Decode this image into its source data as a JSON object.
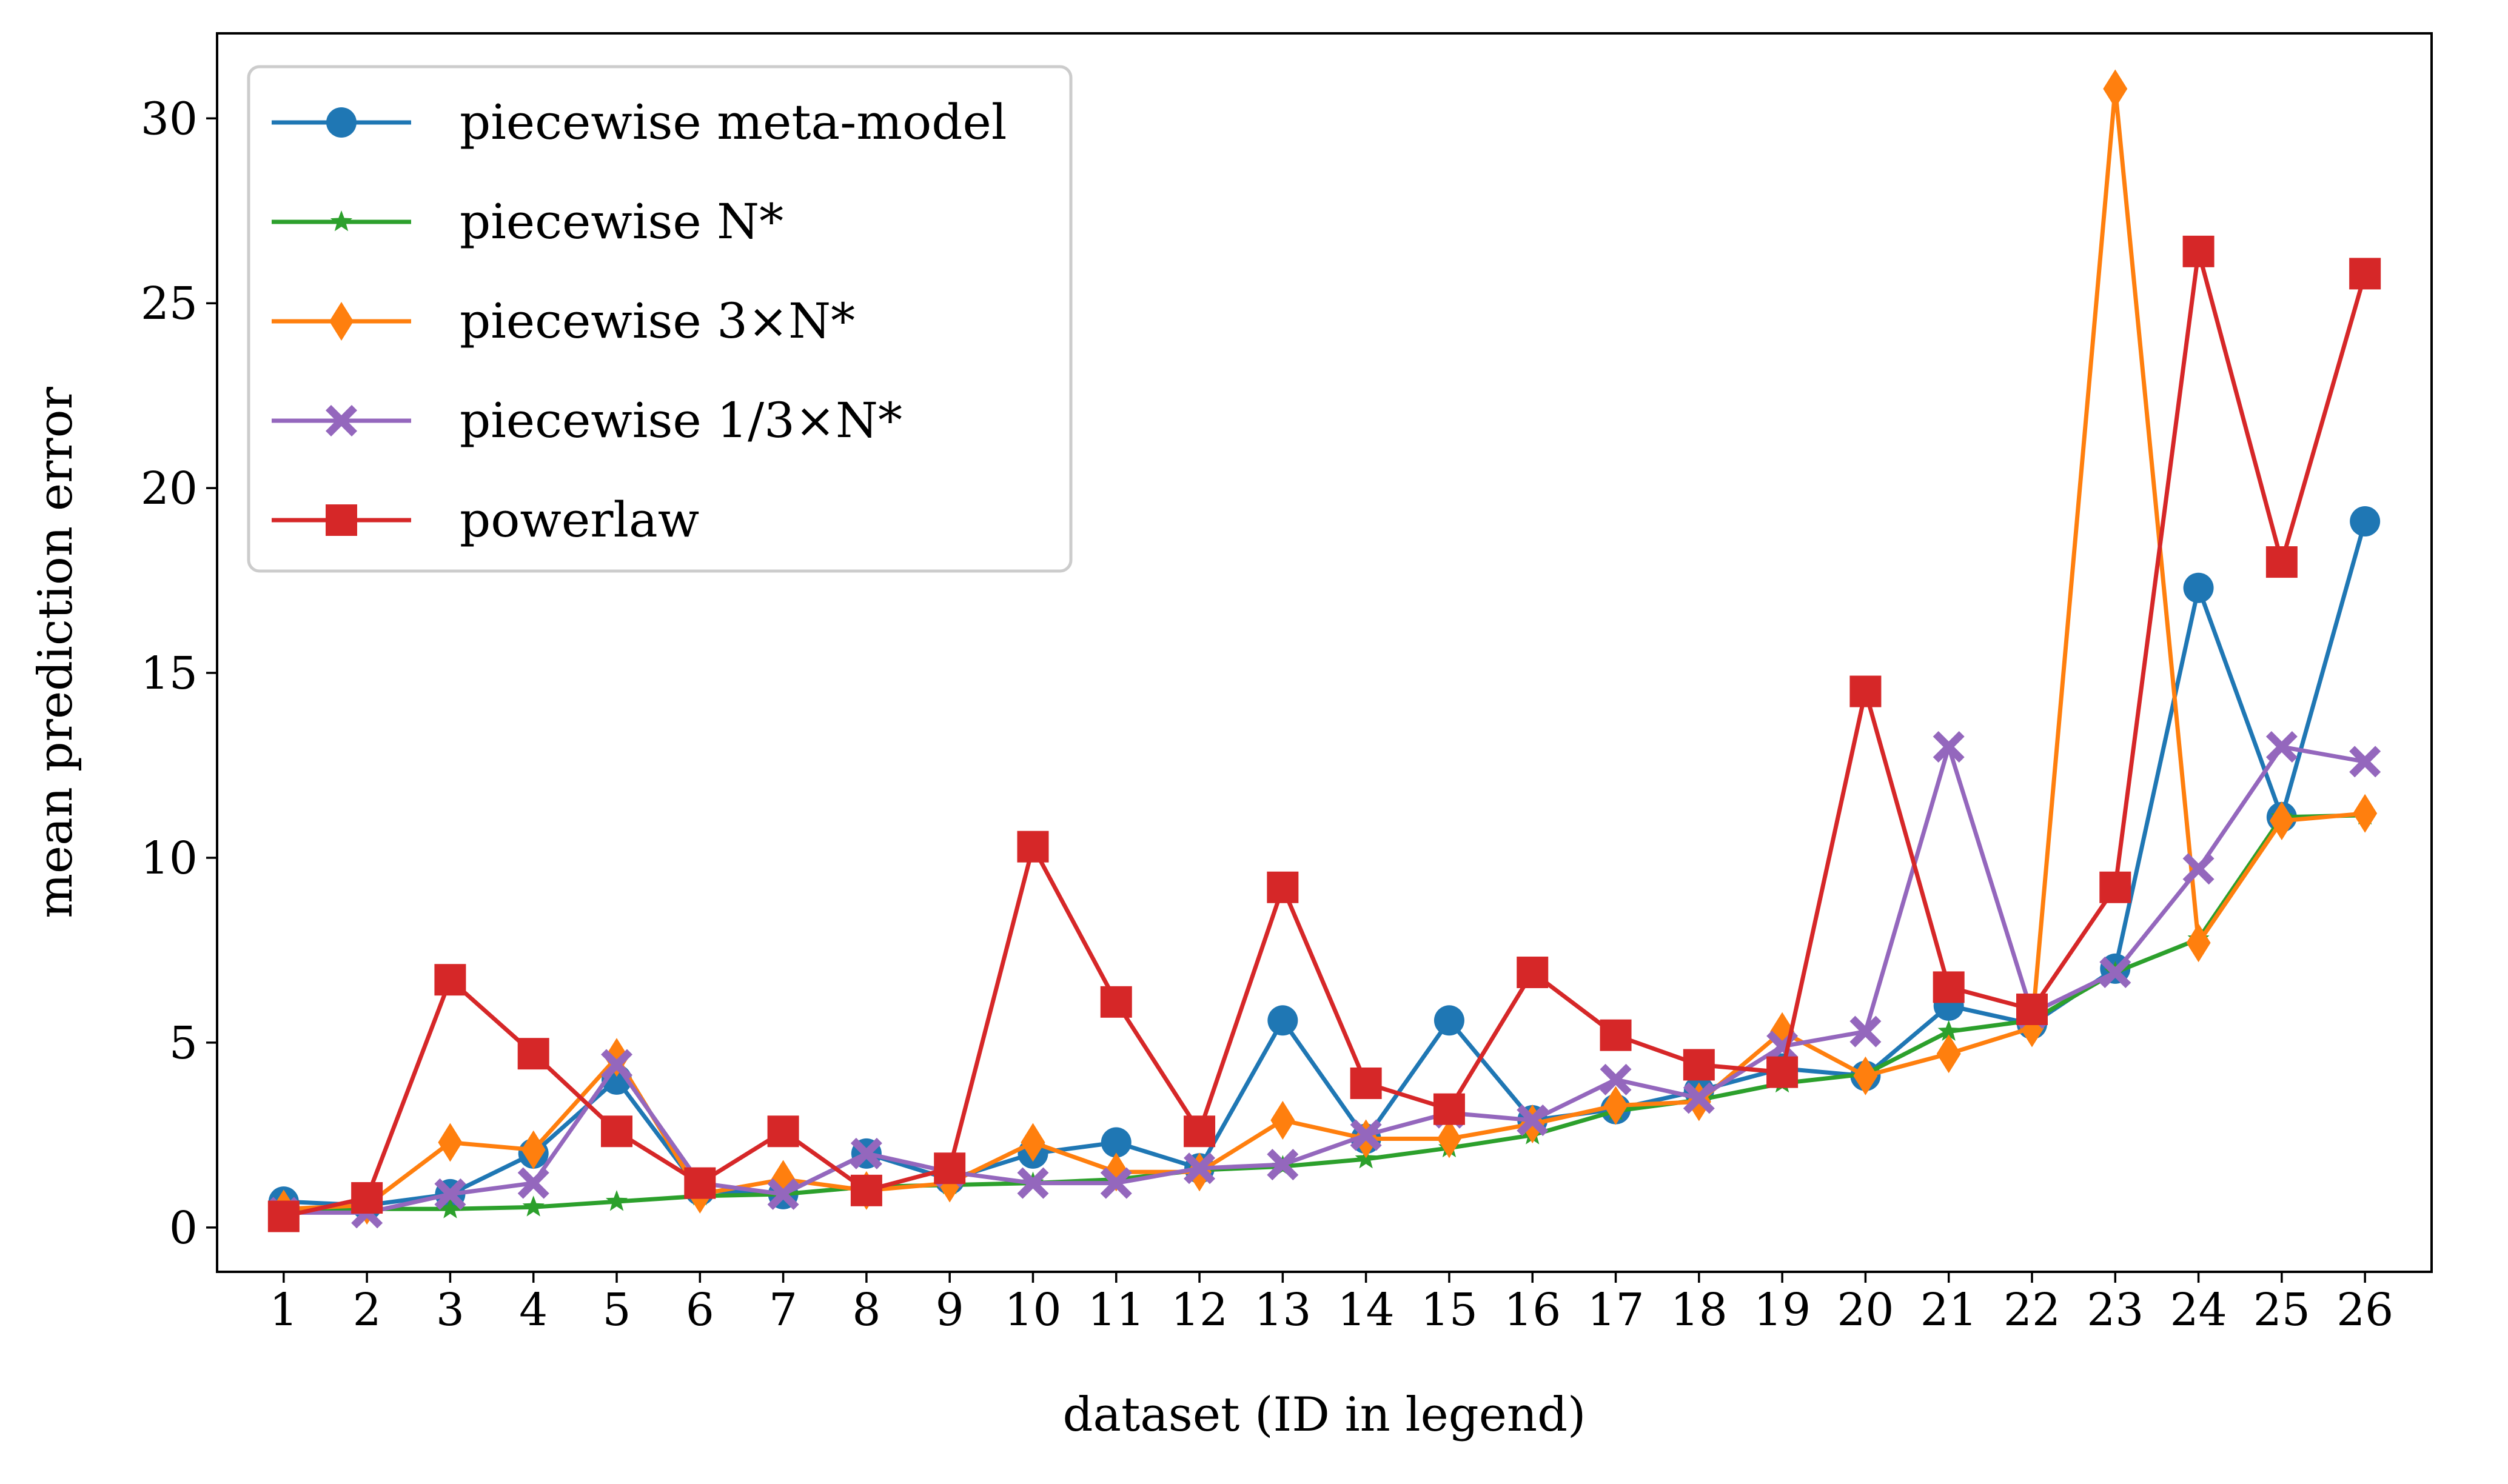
{
  "chart_data": {
    "type": "line",
    "xlabel": "dataset (ID in legend)",
    "ylabel": "mean prediction error",
    "categories": [
      "1",
      "2",
      "3",
      "4",
      "5",
      "6",
      "7",
      "8",
      "9",
      "10",
      "11",
      "12",
      "13",
      "14",
      "15",
      "16",
      "17",
      "18",
      "19",
      "20",
      "21",
      "22",
      "23",
      "24",
      "25",
      "26"
    ],
    "xlim": [
      0.2,
      26.8
    ],
    "ylim": [
      -1.2,
      32.3
    ],
    "yticks": [
      0,
      5,
      10,
      15,
      20,
      25,
      30
    ],
    "grid": false,
    "legend_position": "top-left",
    "series": [
      {
        "name": "piecewise meta-model",
        "color": "#1f77b4",
        "marker": "circle",
        "values": [
          0.7,
          0.6,
          0.9,
          2.0,
          4.0,
          1.0,
          0.9,
          2.0,
          1.3,
          2.0,
          2.3,
          1.6,
          5.6,
          2.4,
          5.6,
          2.9,
          3.2,
          3.7,
          4.3,
          4.1,
          6.0,
          5.5,
          7.0,
          17.3,
          11.1,
          19.1
        ]
      },
      {
        "name": "piecewise N*",
        "color": "#2ca02c",
        "marker": "star",
        "values": [
          0.4,
          0.5,
          0.5,
          0.55,
          0.7,
          0.85,
          0.9,
          1.1,
          1.15,
          1.2,
          1.3,
          1.55,
          1.65,
          1.85,
          2.15,
          2.5,
          3.15,
          3.45,
          3.9,
          4.15,
          5.3,
          5.6,
          6.9,
          7.8,
          11.1,
          11.15
        ]
      },
      {
        "name": "piecewise 3×N*",
        "color": "#ff7f0e",
        "marker": "thin_diamond",
        "values": [
          0.5,
          0.6,
          2.3,
          2.1,
          4.6,
          0.9,
          1.3,
          1.0,
          1.2,
          2.3,
          1.5,
          1.5,
          2.9,
          2.4,
          2.4,
          2.8,
          3.3,
          3.4,
          5.3,
          4.1,
          4.7,
          5.4,
          30.8,
          7.7,
          11.0,
          11.2
        ]
      },
      {
        "name": "piecewise 1/3×N*",
        "color": "#9467bd",
        "marker": "x_filled",
        "values": [
          0.4,
          0.4,
          0.9,
          1.2,
          4.4,
          1.2,
          0.9,
          2.0,
          1.5,
          1.2,
          1.2,
          1.6,
          1.7,
          2.5,
          3.1,
          2.9,
          4.0,
          3.5,
          4.9,
          5.3,
          13.0,
          5.8,
          6.9,
          9.7,
          13.0,
          12.6
        ]
      },
      {
        "name": "powerlaw",
        "color": "#d62728",
        "marker": "square",
        "values": [
          0.3,
          0.8,
          6.7,
          4.7,
          2.6,
          1.2,
          2.6,
          1.0,
          1.6,
          10.3,
          6.1,
          2.6,
          9.2,
          3.9,
          3.2,
          6.9,
          5.2,
          4.4,
          4.2,
          14.5,
          6.5,
          5.9,
          9.2,
          26.4,
          18.0,
          25.8
        ]
      }
    ]
  }
}
